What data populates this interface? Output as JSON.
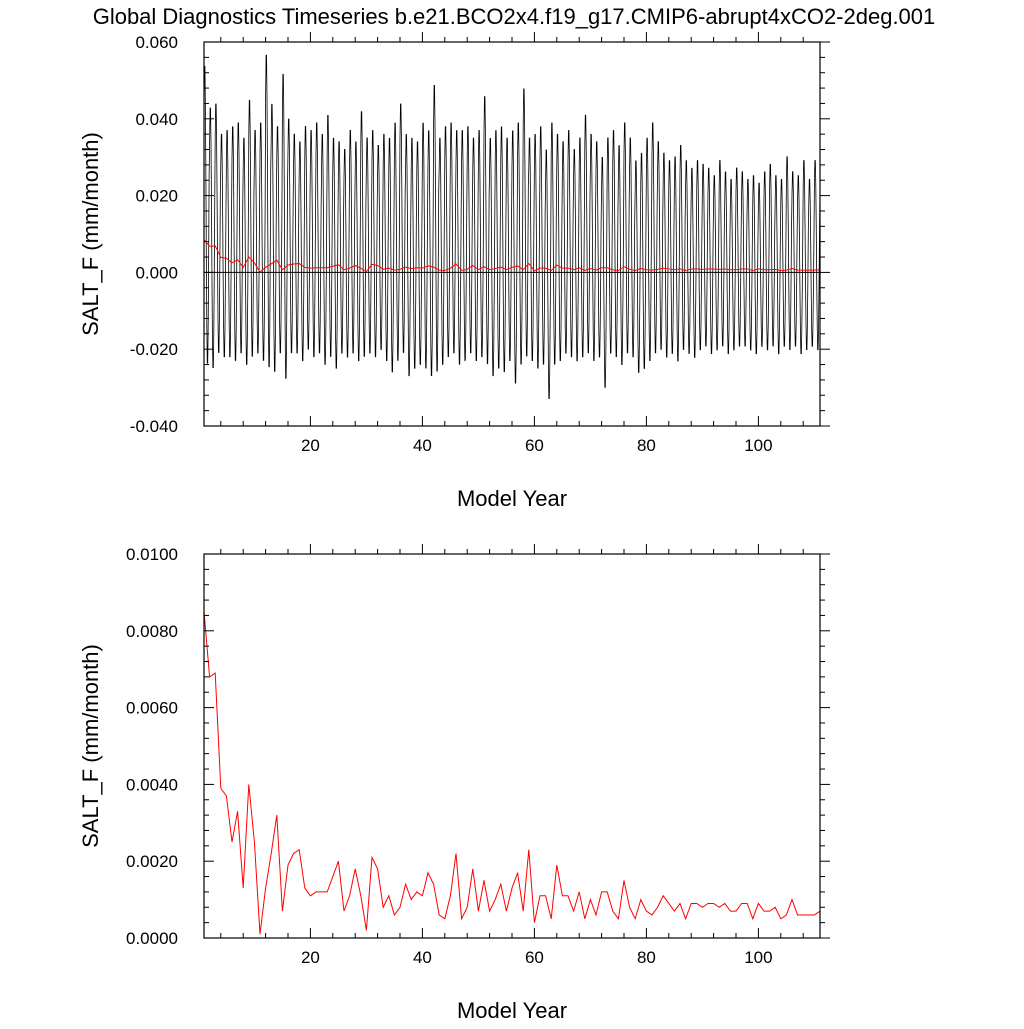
{
  "title": "Global Diagnostics Timeseries b.e21.BCO2x4.f19_g17.CMIP6-abrupt4xCO2-2deg.001",
  "colors": {
    "monthly": "#000000",
    "annual": "#ff0000",
    "zero_line": "#000000"
  },
  "chart_data": [
    {
      "type": "line",
      "xlabel": "Model Year",
      "ylabel": "SALT_F (mm/month)",
      "xlim": [
        1,
        111
      ],
      "ylim": [
        -0.04,
        0.06
      ],
      "x_ticks": [
        20,
        40,
        60,
        80,
        100
      ],
      "x_tick_labels": [
        "20",
        "40",
        "60",
        "80",
        "100"
      ],
      "y_ticks": [
        -0.04,
        -0.02,
        0.0,
        0.02,
        0.04,
        0.06
      ],
      "y_tick_labels": [
        "-0.040",
        "-0.020",
        "0.000",
        "0.020",
        "0.040",
        "0.060"
      ],
      "reference_line": 0.0,
      "grid": false,
      "series": [
        {
          "role": "monthly",
          "color": "#000000",
          "annual_cycle": true,
          "year_start": 1,
          "year_max": [
            0.055,
            0.044,
            0.045,
            0.037,
            0.038,
            0.039,
            0.04,
            0.036,
            0.046,
            0.038,
            0.04,
            0.058,
            0.045,
            0.039,
            0.053,
            0.041,
            0.037,
            0.035,
            0.039,
            0.038,
            0.04,
            0.037,
            0.042,
            0.036,
            0.035,
            0.033,
            0.038,
            0.035,
            0.043,
            0.036,
            0.038,
            0.034,
            0.037,
            0.036,
            0.04,
            0.045,
            0.037,
            0.036,
            0.035,
            0.04,
            0.038,
            0.05,
            0.036,
            0.039,
            0.04,
            0.038,
            0.038,
            0.039,
            0.036,
            0.038,
            0.047,
            0.036,
            0.038,
            0.039,
            0.036,
            0.038,
            0.04,
            0.049,
            0.036,
            0.037,
            0.039,
            0.033,
            0.04,
            0.037,
            0.035,
            0.038,
            0.033,
            0.036,
            0.042,
            0.037,
            0.035,
            0.031,
            0.036,
            0.038,
            0.034,
            0.04,
            0.036,
            0.03,
            0.032,
            0.036,
            0.04,
            0.035,
            0.032,
            0.03,
            0.031,
            0.034,
            0.03,
            0.028,
            0.03,
            0.029,
            0.028,
            0.026,
            0.03,
            0.027,
            0.025,
            0.028,
            0.027,
            0.025,
            0.026,
            0.024,
            0.027,
            0.029,
            0.026,
            0.025,
            0.031,
            0.027,
            0.026,
            0.03,
            0.025,
            0.03,
            0.028
          ],
          "year_min": [
            -0.025,
            -0.026,
            -0.022,
            -0.023,
            -0.023,
            -0.024,
            -0.022,
            -0.025,
            -0.023,
            -0.022,
            -0.024,
            -0.026,
            -0.027,
            -0.022,
            -0.029,
            -0.022,
            -0.022,
            -0.024,
            -0.021,
            -0.023,
            -0.022,
            -0.025,
            -0.023,
            -0.026,
            -0.022,
            -0.023,
            -0.022,
            -0.024,
            -0.023,
            -0.022,
            -0.023,
            -0.021,
            -0.024,
            -0.027,
            -0.024,
            -0.022,
            -0.028,
            -0.026,
            -0.025,
            -0.026,
            -0.028,
            -0.027,
            -0.025,
            -0.023,
            -0.022,
            -0.025,
            -0.024,
            -0.022,
            -0.024,
            -0.023,
            -0.025,
            -0.028,
            -0.026,
            -0.027,
            -0.024,
            -0.03,
            -0.025,
            -0.023,
            -0.024,
            -0.026,
            -0.025,
            -0.034,
            -0.025,
            -0.024,
            -0.022,
            -0.023,
            -0.024,
            -0.023,
            -0.022,
            -0.024,
            -0.023,
            -0.031,
            -0.022,
            -0.023,
            -0.025,
            -0.022,
            -0.023,
            -0.027,
            -0.026,
            -0.024,
            -0.022,
            -0.021,
            -0.023,
            -0.022,
            -0.024,
            -0.021,
            -0.022,
            -0.023,
            -0.021,
            -0.02,
            -0.022,
            -0.021,
            -0.02,
            -0.022,
            -0.021,
            -0.02,
            -0.02,
            -0.021,
            -0.022,
            -0.02,
            -0.021,
            -0.02,
            -0.022,
            -0.02,
            -0.021,
            -0.02,
            -0.022,
            -0.021,
            -0.02,
            -0.021,
            -0.02
          ]
        },
        {
          "role": "annual",
          "color": "#ff0000",
          "x_start": 1,
          "values": [
            0.0085,
            0.0068,
            0.0069,
            0.0039,
            0.0037,
            0.0025,
            0.0033,
            0.0013,
            0.004,
            0.0025,
            0.0001,
            0.0013,
            0.0022,
            0.0032,
            0.0007,
            0.0019,
            0.0022,
            0.0023,
            0.0013,
            0.0011,
            0.0012,
            0.0012,
            0.0012,
            0.0016,
            0.002,
            0.0007,
            0.0011,
            0.0018,
            0.0011,
            0.0002,
            0.0021,
            0.0018,
            0.0008,
            0.0011,
            0.0006,
            0.0008,
            0.0014,
            0.001,
            0.0012,
            0.0011,
            0.0017,
            0.0014,
            0.0006,
            0.0005,
            0.0011,
            0.0022,
            0.0005,
            0.0008,
            0.0018,
            0.0007,
            0.0015,
            0.0007,
            0.001,
            0.0014,
            0.0007,
            0.0013,
            0.0017,
            0.0007,
            0.0023,
            0.0004,
            0.0011,
            0.0011,
            0.0005,
            0.0019,
            0.0011,
            0.0011,
            0.0007,
            0.0012,
            0.0005,
            0.001,
            0.0006,
            0.0012,
            0.0012,
            0.0007,
            0.0005,
            0.0015,
            0.0008,
            0.0005,
            0.001,
            0.0007,
            0.0006,
            0.0008,
            0.0011,
            0.0009,
            0.0007,
            0.0009,
            0.0005,
            0.0009,
            0.0009,
            0.0008,
            0.0009,
            0.0009,
            0.0008,
            0.0009,
            0.0007,
            0.0007,
            0.0009,
            0.0009,
            0.0005,
            0.0009,
            0.0007,
            0.0007,
            0.0008,
            0.0005,
            0.0006,
            0.001,
            0.0006,
            0.0006,
            0.0006,
            0.0006,
            0.0007
          ]
        }
      ]
    },
    {
      "type": "line",
      "xlabel": "Model Year",
      "ylabel": "SALT_F (mm/month)",
      "xlim": [
        1,
        111
      ],
      "ylim": [
        0,
        0.01
      ],
      "x_ticks": [
        20,
        40,
        60,
        80,
        100
      ],
      "x_tick_labels": [
        "20",
        "40",
        "60",
        "80",
        "100"
      ],
      "y_ticks": [
        0,
        0.002,
        0.004,
        0.006,
        0.008,
        0.01
      ],
      "y_tick_labels": [
        "0.0000",
        "0.0020",
        "0.0040",
        "0.0060",
        "0.0080",
        "0.0100"
      ],
      "grid": false,
      "series": [
        {
          "role": "annual",
          "color": "#ff0000",
          "x_start": 1,
          "values": [
            0.0085,
            0.0068,
            0.0069,
            0.0039,
            0.0037,
            0.0025,
            0.0033,
            0.0013,
            0.004,
            0.0025,
            0.0001,
            0.0013,
            0.0022,
            0.0032,
            0.0007,
            0.0019,
            0.0022,
            0.0023,
            0.0013,
            0.0011,
            0.0012,
            0.0012,
            0.0012,
            0.0016,
            0.002,
            0.0007,
            0.0011,
            0.0018,
            0.0011,
            0.0002,
            0.0021,
            0.0018,
            0.0008,
            0.0011,
            0.0006,
            0.0008,
            0.0014,
            0.001,
            0.0012,
            0.0011,
            0.0017,
            0.0014,
            0.0006,
            0.0005,
            0.0011,
            0.0022,
            0.0005,
            0.0008,
            0.0018,
            0.0007,
            0.0015,
            0.0007,
            0.001,
            0.0014,
            0.0007,
            0.0013,
            0.0017,
            0.0007,
            0.0023,
            0.0004,
            0.0011,
            0.0011,
            0.0005,
            0.0019,
            0.0011,
            0.0011,
            0.0007,
            0.0012,
            0.0005,
            0.001,
            0.0006,
            0.0012,
            0.0012,
            0.0007,
            0.0005,
            0.0015,
            0.0008,
            0.0005,
            0.001,
            0.0007,
            0.0006,
            0.0008,
            0.0011,
            0.0009,
            0.0007,
            0.0009,
            0.0005,
            0.0009,
            0.0009,
            0.0008,
            0.0009,
            0.0009,
            0.0008,
            0.0009,
            0.0007,
            0.0007,
            0.0009,
            0.0009,
            0.0005,
            0.0009,
            0.0007,
            0.0007,
            0.0008,
            0.0005,
            0.0006,
            0.001,
            0.0006,
            0.0006,
            0.0006,
            0.0006,
            0.0007
          ]
        }
      ]
    }
  ]
}
